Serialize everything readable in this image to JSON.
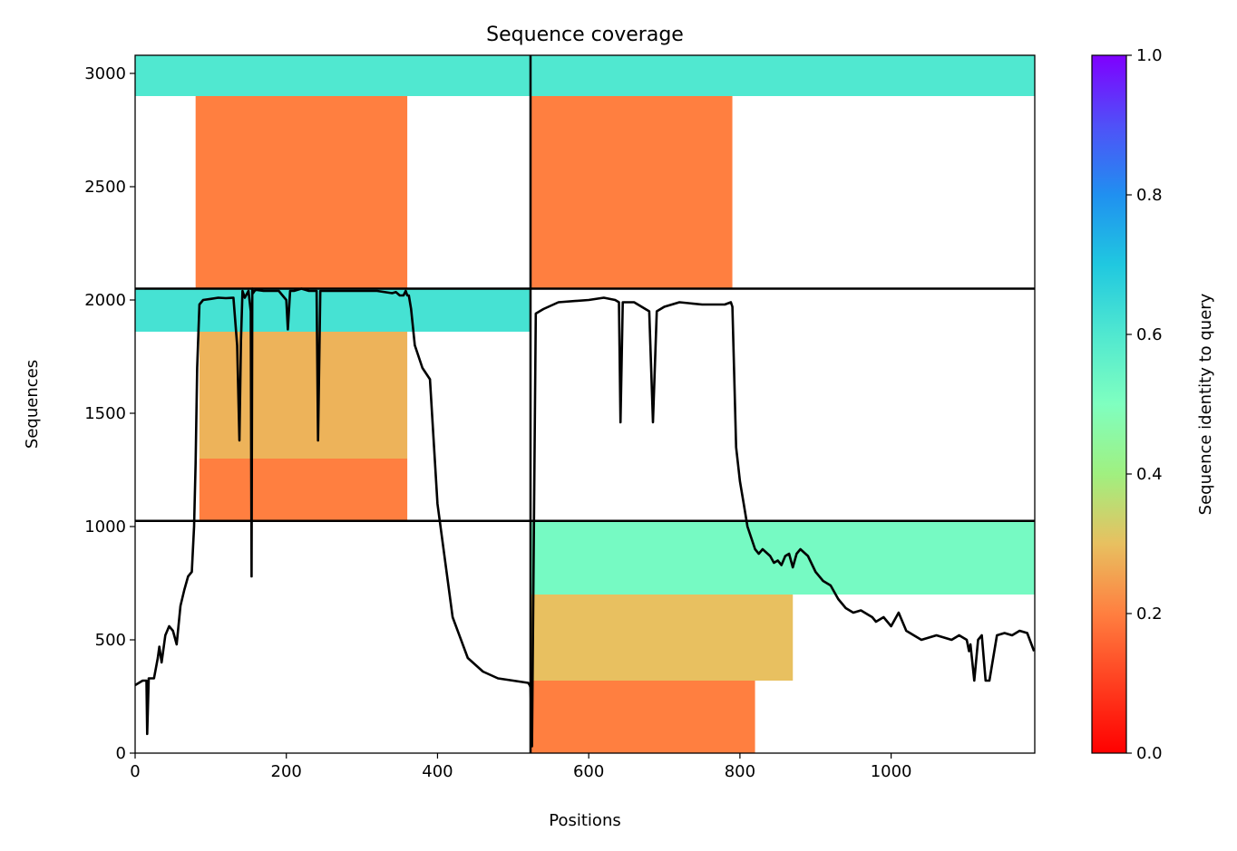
{
  "chart_data": {
    "type": "heatmap",
    "title": "Sequence coverage",
    "xlabel": "Positions",
    "ylabel": "Sequences",
    "xlim": [
      0,
      1190
    ],
    "ylim": [
      0,
      3080
    ],
    "x_ticks": [
      "0",
      "200",
      "400",
      "600",
      "800",
      "1000"
    ],
    "x_tick_values": [
      0,
      200,
      400,
      600,
      800,
      1000
    ],
    "y_ticks": [
      "0",
      "500",
      "1000",
      "1500",
      "2000",
      "2500",
      "3000"
    ],
    "y_tick_values": [
      0,
      500,
      1000,
      1500,
      2000,
      2500,
      3000
    ],
    "colorbar": {
      "label": "Sequence identity to query",
      "range": [
        0.0,
        1.0
      ],
      "colormap": "rainbow_r",
      "ticks": [
        "0.0",
        "0.2",
        "0.4",
        "0.6",
        "0.8",
        "1.0"
      ],
      "tick_values": [
        0.0,
        0.2,
        0.4,
        0.6,
        0.8,
        1.0
      ]
    },
    "segment_boundaries": {
      "x": [
        523
      ],
      "y": [
        1025,
        2050
      ]
    },
    "panels": [
      {
        "name": "top-left",
        "x": [
          0,
          523
        ],
        "y": [
          2050,
          3080
        ],
        "bands": [
          {
            "y0": 2900,
            "y1": 3080,
            "x0": 0,
            "x1": 523,
            "identity": 0.6
          },
          {
            "y0": 2050,
            "y1": 2900,
            "x0": 80,
            "x1": 360,
            "identity": 0.2
          }
        ]
      },
      {
        "name": "top-right",
        "x": [
          523,
          1190
        ],
        "y": [
          2050,
          3080
        ],
        "bands": [
          {
            "y0": 2900,
            "y1": 3080,
            "x0": 523,
            "x1": 1190,
            "identity": 0.6
          },
          {
            "y0": 2050,
            "y1": 2900,
            "x0": 523,
            "x1": 790,
            "identity": 0.2
          }
        ]
      },
      {
        "name": "middle-left",
        "x": [
          0,
          523
        ],
        "y": [
          1025,
          2050
        ],
        "bands": [
          {
            "y0": 1860,
            "y1": 2050,
            "x0": 0,
            "x1": 523,
            "identity": 0.62
          },
          {
            "y0": 1300,
            "y1": 1860,
            "x0": 85,
            "x1": 360,
            "identity": 0.28
          },
          {
            "y0": 1025,
            "y1": 1300,
            "x0": 85,
            "x1": 360,
            "identity": 0.2
          }
        ]
      },
      {
        "name": "middle-right",
        "x": [
          523,
          1190
        ],
        "y": [
          1025,
          2050
        ],
        "bands": []
      },
      {
        "name": "bottom-left",
        "x": [
          0,
          523
        ],
        "y": [
          0,
          1025
        ],
        "bands": []
      },
      {
        "name": "bottom-right",
        "x": [
          523,
          1190
        ],
        "y": [
          0,
          1025
        ],
        "bands": [
          {
            "y0": 700,
            "y1": 1025,
            "x0": 523,
            "x1": 1190,
            "identity": 0.52
          },
          {
            "y0": 320,
            "y1": 700,
            "x0": 523,
            "x1": 870,
            "identity": 0.3
          },
          {
            "y0": 0,
            "y1": 320,
            "x0": 523,
            "x1": 820,
            "identity": 0.2
          }
        ]
      }
    ],
    "coverage_line": {
      "name": "coverage",
      "x": [
        0,
        10,
        15,
        16,
        18,
        25,
        30,
        32,
        35,
        40,
        45,
        50,
        55,
        60,
        65,
        70,
        75,
        78,
        80,
        82,
        85,
        90,
        100,
        110,
        120,
        130,
        135,
        138,
        140,
        142,
        145,
        150,
        153,
        154,
        155,
        156,
        158,
        160,
        170,
        180,
        190,
        200,
        202,
        205,
        210,
        220,
        230,
        240,
        242,
        245,
        250,
        260,
        280,
        300,
        320,
        340,
        345,
        350,
        355,
        358,
        360,
        362,
        365,
        370,
        380,
        390,
        400,
        420,
        440,
        460,
        480,
        500,
        520,
        522,
        523,
        525,
        530,
        540,
        560,
        600,
        620,
        635,
        640,
        642,
        645,
        660,
        675,
        680,
        685,
        690,
        700,
        720,
        750,
        780,
        788,
        790,
        795,
        800,
        805,
        810,
        815,
        820,
        825,
        830,
        840,
        845,
        850,
        855,
        860,
        865,
        870,
        875,
        880,
        890,
        900,
        910,
        920,
        930,
        940,
        950,
        960,
        970,
        975,
        980,
        990,
        1000,
        1010,
        1020,
        1030,
        1040,
        1050,
        1060,
        1070,
        1080,
        1090,
        1100,
        1103,
        1105,
        1110,
        1115,
        1120,
        1125,
        1130,
        1140,
        1150,
        1160,
        1170,
        1180,
        1189
      ],
      "y": [
        300,
        320,
        320,
        85,
        330,
        330,
        420,
        470,
        400,
        520,
        560,
        540,
        480,
        650,
        720,
        780,
        800,
        1000,
        1280,
        1700,
        1980,
        2000,
        2005,
        2010,
        2008,
        2010,
        1800,
        1380,
        1820,
        2040,
        2010,
        2040,
        1950,
        780,
        2050,
        2030,
        2040,
        2045,
        2040,
        2040,
        2040,
        2000,
        1870,
        2040,
        2040,
        2050,
        2040,
        2040,
        1380,
        2040,
        2040,
        2040,
        2040,
        2040,
        2040,
        2030,
        2035,
        2020,
        2020,
        2040,
        2020,
        2020,
        1960,
        1800,
        1700,
        1650,
        1100,
        600,
        420,
        360,
        330,
        320,
        310,
        300,
        290,
        30,
        1940,
        1960,
        1990,
        2000,
        2010,
        2000,
        1990,
        1460,
        1990,
        1990,
        1960,
        1950,
        1460,
        1950,
        1970,
        1990,
        1980,
        1980,
        1990,
        1970,
        1350,
        1200,
        1100,
        1000,
        950,
        900,
        880,
        900,
        870,
        840,
        850,
        830,
        870,
        880,
        820,
        880,
        900,
        870,
        800,
        760,
        740,
        680,
        640,
        620,
        630,
        610,
        600,
        580,
        600,
        560,
        620,
        540,
        520,
        500,
        510,
        520,
        510,
        500,
        520,
        500,
        450,
        480,
        320,
        500,
        520,
        320,
        320,
        520,
        530,
        520,
        540,
        530,
        450,
        350
      ]
    }
  }
}
